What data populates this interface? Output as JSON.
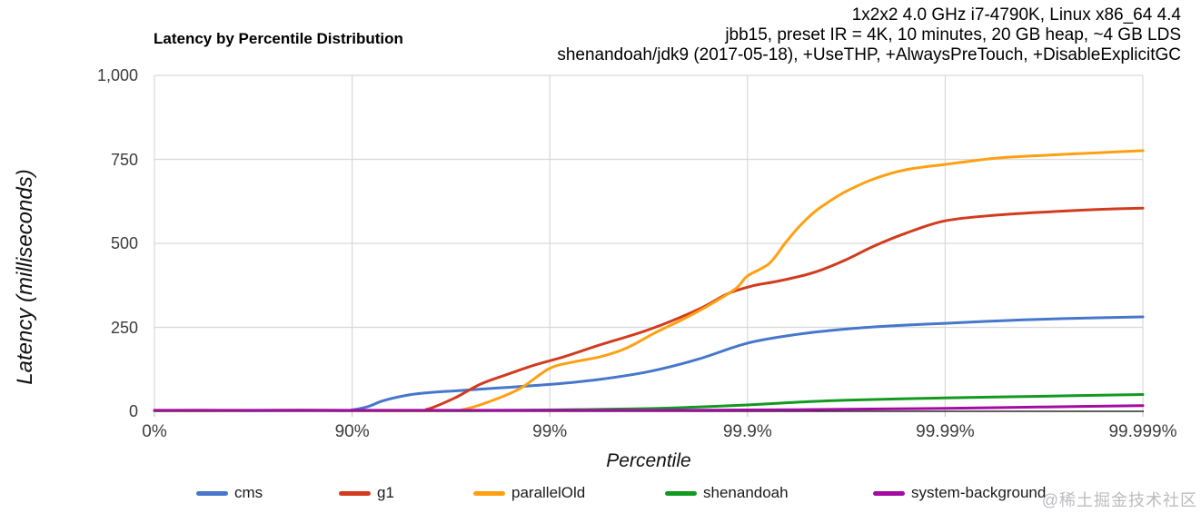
{
  "header": {
    "lines": [
      "1x2x2 4.0 GHz i7-4790K, Linux x86_64 4.4",
      "jbb15, preset IR = 4K, 10 minutes, 20 GB heap, ~4 GB LDS",
      "shenandoah/jdk9 (2017-05-18), +UseTHP, +AlwaysPreTouch, +DisableExplicitGC"
    ]
  },
  "watermark": "@稀土掘金技术社区",
  "colors": {
    "gridline": "#d9d9d9",
    "axis_line": "#2b2b2b",
    "tick_text": "#3c3c3c"
  },
  "chart_data": {
    "type": "line",
    "title": "Latency by Percentile Distribution",
    "xlabel": "Percentile",
    "ylabel": "Latency (milliseconds)",
    "x_axis": {
      "scale": "log-percentile",
      "tick_labels": [
        "0%",
        "90%",
        "99%",
        "99.9%",
        "99.99%",
        "99.999%"
      ],
      "tick_positions": [
        0,
        1,
        2,
        3,
        4,
        5
      ]
    },
    "y_axis": {
      "ylim": [
        0,
        1000
      ],
      "tick_values": [
        0,
        250,
        500,
        750,
        1000
      ],
      "tick_labels": [
        "0",
        "250",
        "500",
        "750",
        "1,000"
      ]
    },
    "grid": true,
    "legend_position": "bottom",
    "series": [
      {
        "name": "cms",
        "color": "#4677CB",
        "points": [
          [
            0,
            2
          ],
          [
            0.5,
            2
          ],
          [
            0.95,
            2
          ],
          [
            1.0,
            4
          ],
          [
            1.08,
            14
          ],
          [
            1.16,
            32
          ],
          [
            1.29,
            49
          ],
          [
            1.42,
            57
          ],
          [
            1.55,
            62
          ],
          [
            1.75,
            70
          ],
          [
            2.0,
            80
          ],
          [
            2.25,
            95
          ],
          [
            2.5,
            118
          ],
          [
            2.75,
            155
          ],
          [
            3.0,
            203
          ],
          [
            3.25,
            229
          ],
          [
            3.5,
            245
          ],
          [
            3.75,
            255
          ],
          [
            4.0,
            262
          ],
          [
            4.3,
            270
          ],
          [
            4.6,
            276
          ],
          [
            5.0,
            281
          ]
        ]
      },
      {
        "name": "g1",
        "color": "#D23B1E",
        "points": [
          [
            0,
            2
          ],
          [
            1.28,
            2
          ],
          [
            1.38,
            6
          ],
          [
            1.52,
            40
          ],
          [
            1.65,
            81
          ],
          [
            1.79,
            111
          ],
          [
            1.93,
            139
          ],
          [
            2.07,
            162
          ],
          [
            2.25,
            197
          ],
          [
            2.5,
            243
          ],
          [
            2.75,
            303
          ],
          [
            2.9,
            350
          ],
          [
            3.03,
            374
          ],
          [
            3.16,
            388
          ],
          [
            3.34,
            414
          ],
          [
            3.49,
            449
          ],
          [
            3.64,
            492
          ],
          [
            3.8,
            530
          ],
          [
            4.0,
            567
          ],
          [
            4.26,
            584
          ],
          [
            4.56,
            595
          ],
          [
            4.78,
            601
          ],
          [
            5.0,
            605
          ]
        ]
      },
      {
        "name": "parallelOld",
        "color": "#FFA011",
        "points": [
          [
            0,
            2
          ],
          [
            1.45,
            2
          ],
          [
            1.56,
            5
          ],
          [
            1.7,
            30
          ],
          [
            1.85,
            68
          ],
          [
            2.0,
            128
          ],
          [
            2.13,
            148
          ],
          [
            2.26,
            163
          ],
          [
            2.39,
            189
          ],
          [
            2.53,
            233
          ],
          [
            2.67,
            273
          ],
          [
            2.8,
            314
          ],
          [
            2.94,
            365
          ],
          [
            3.0,
            403
          ],
          [
            3.11,
            440
          ],
          [
            3.19,
            500
          ],
          [
            3.26,
            549
          ],
          [
            3.34,
            594
          ],
          [
            3.42,
            627
          ],
          [
            3.5,
            655
          ],
          [
            3.64,
            692
          ],
          [
            3.8,
            719
          ],
          [
            4.0,
            735
          ],
          [
            4.25,
            753
          ],
          [
            4.5,
            762
          ],
          [
            4.75,
            769
          ],
          [
            5.0,
            776
          ]
        ]
      },
      {
        "name": "shenandoah",
        "color": "#129A20",
        "points": [
          [
            0,
            2
          ],
          [
            1.5,
            2
          ],
          [
            2.0,
            4
          ],
          [
            2.5,
            8
          ],
          [
            2.75,
            13
          ],
          [
            3.0,
            19
          ],
          [
            3.25,
            27
          ],
          [
            3.5,
            33
          ],
          [
            4.0,
            40
          ],
          [
            4.5,
            45
          ],
          [
            5.0,
            50
          ]
        ]
      },
      {
        "name": "system-background",
        "color": "#A30BA3",
        "points": [
          [
            0,
            3
          ],
          [
            1.0,
            3
          ],
          [
            2.0,
            3
          ],
          [
            2.5,
            3
          ],
          [
            3.0,
            4
          ],
          [
            3.5,
            6
          ],
          [
            4.0,
            9
          ],
          [
            4.5,
            13
          ],
          [
            5.0,
            17
          ]
        ]
      }
    ]
  }
}
